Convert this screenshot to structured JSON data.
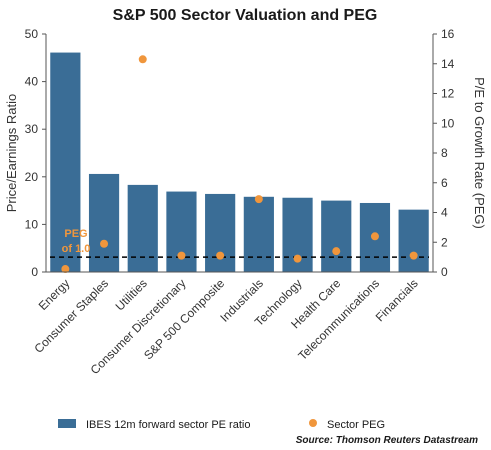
{
  "chart_data": {
    "type": "bar",
    "title": "S&P 500 Sector Valuation and PEG",
    "ylabel": "Price/Earnings Ratio",
    "y2label": "P/E to Growth Rate (PEG)",
    "ylim": [
      0,
      50
    ],
    "y2lim": [
      0,
      16
    ],
    "yticks": [
      0,
      10,
      20,
      30,
      40,
      50
    ],
    "y2ticks": [
      0,
      2,
      4,
      6,
      8,
      10,
      12,
      14,
      16
    ],
    "categories": [
      "Energy",
      "Consumer Staples",
      "Utilities",
      "Consumer Discretionary",
      "S&P 500 Composite",
      "Industrials",
      "Technology",
      "Health Care",
      "Telecommunications",
      "Financials"
    ],
    "series": [
      {
        "name": "IBES 12m forward sector PE ratio",
        "type": "bar",
        "axis": "left",
        "color": "#3a6d96",
        "values": [
          46.1,
          20.6,
          18.3,
          16.9,
          16.4,
          15.8,
          15.6,
          15.0,
          14.5,
          13.1
        ]
      },
      {
        "name": "Sector PEG",
        "type": "scatter",
        "axis": "right",
        "color": "#f0963c",
        "values": [
          0.2,
          1.9,
          14.3,
          1.1,
          1.1,
          4.9,
          0.9,
          1.4,
          2.4,
          1.1
        ]
      }
    ],
    "reference_line": {
      "axis": "right",
      "value": 1.0,
      "style": "dashed",
      "color": "#000000"
    },
    "annotation": {
      "lines": [
        "PEG",
        "of 1.0"
      ],
      "color": "#f0963c"
    },
    "legend_position": "bottom",
    "source": "Source: Thomson Reuters Datastream",
    "grid": false
  }
}
